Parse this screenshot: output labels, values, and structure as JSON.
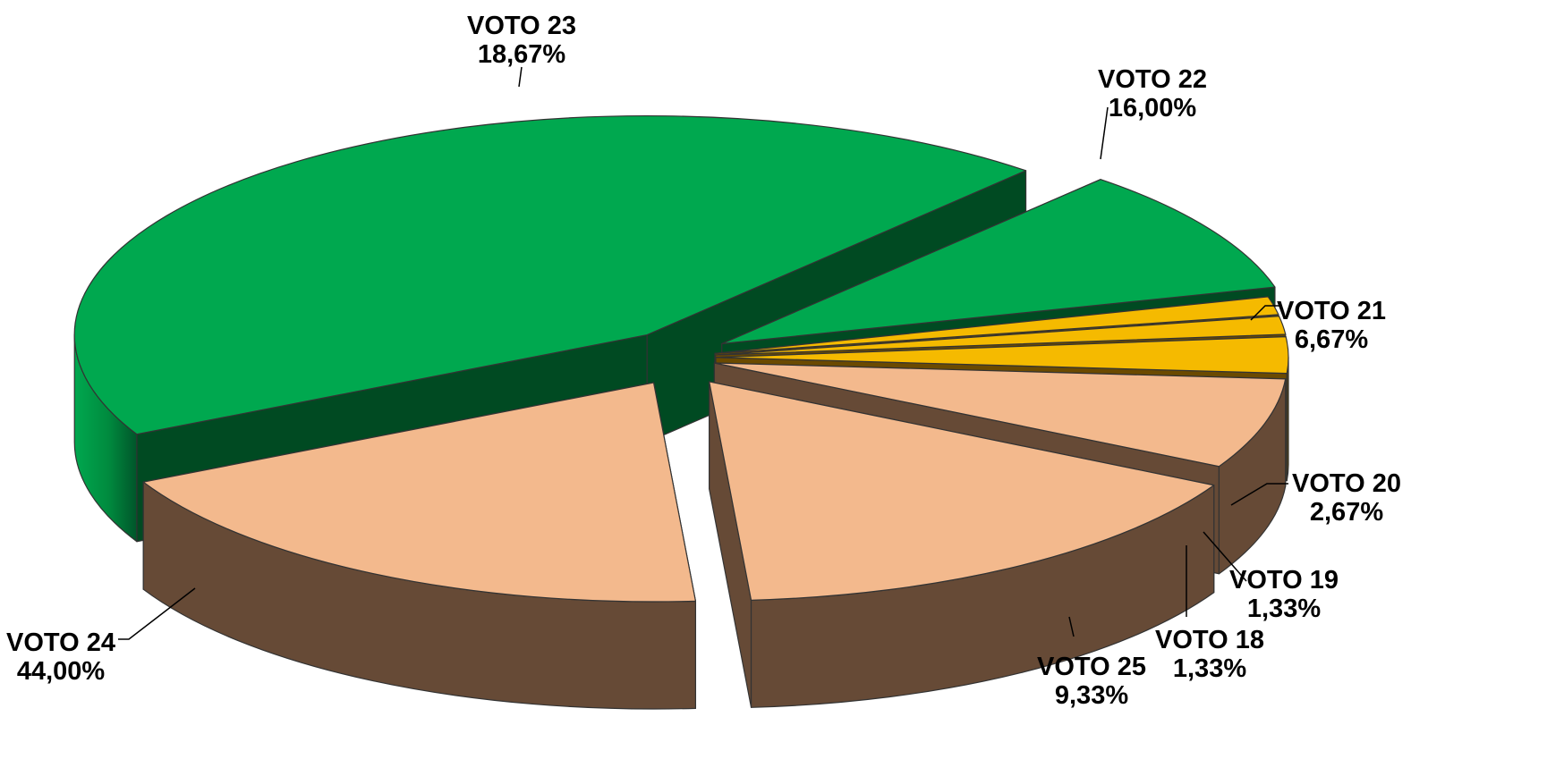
{
  "chart_data": {
    "type": "pie",
    "title": "",
    "slices": [
      {
        "label": "VOTO 18",
        "value": 1.33,
        "value_label": "1,33%",
        "color": "#F5BA00"
      },
      {
        "label": "VOTO 19",
        "value": 1.33,
        "value_label": "1,33%",
        "color": "#F5BA00"
      },
      {
        "label": "VOTO 20",
        "value": 2.67,
        "value_label": "2,67%",
        "color": "#F5BA00"
      },
      {
        "label": "VOTO 21",
        "value": 6.67,
        "value_label": "6,67%",
        "color": "#F3B98D"
      },
      {
        "label": "VOTO 22",
        "value": 16.0,
        "value_label": "16,00%",
        "color": "#F3B98D"
      },
      {
        "label": "VOTO 23",
        "value": 18.67,
        "value_label": "18,67%",
        "color": "#F3B98D"
      },
      {
        "label": "VOTO 24",
        "value": 44.0,
        "value_label": "44,00%",
        "color": "#00A84F"
      },
      {
        "label": "VOTO 25",
        "value": 9.33,
        "value_label": "9,33%",
        "color": "#00A84F"
      }
    ],
    "style": "3d-exploded",
    "legend": "none"
  }
}
